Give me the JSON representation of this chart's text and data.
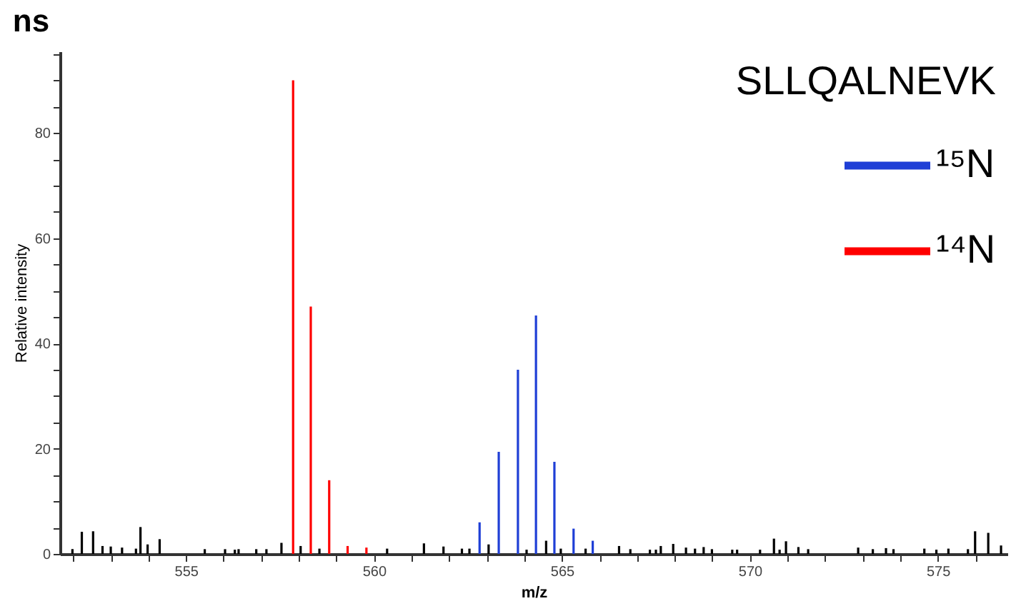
{
  "chart_data": {
    "type": "bar",
    "title": "ns",
    "xlabel": "m/z",
    "ylabel": "Relative intensity",
    "legend_title": "SLLQALNEVK",
    "legend": "top right",
    "grid": false,
    "xlim": [
      551.65,
      576.85
    ],
    "xticks": [
      {
        "value": 552,
        "label": null
      },
      {
        "value": 553,
        "label": null
      },
      {
        "value": 554,
        "label": null
      },
      555,
      {
        "value": 556,
        "label": null
      },
      {
        "value": 557,
        "label": null
      },
      {
        "value": 558,
        "label": null
      },
      {
        "value": 559,
        "label": null
      },
      560,
      {
        "value": 561,
        "label": null
      },
      {
        "value": 562,
        "label": null
      },
      {
        "value": 563,
        "label": null
      },
      {
        "value": 564,
        "label": null
      },
      565,
      {
        "value": 566,
        "label": null
      },
      {
        "value": 567,
        "label": null
      },
      {
        "value": 568,
        "label": null
      },
      {
        "value": 569,
        "label": null
      },
      570,
      {
        "value": 571,
        "label": null
      },
      {
        "value": 572,
        "label": null
      },
      {
        "value": 573,
        "label": null
      },
      {
        "value": 574,
        "label": null
      },
      575,
      {
        "value": 576,
        "label": null
      }
    ],
    "ylim": [
      0,
      95.5
    ],
    "yticks": [
      0,
      {
        "value": 5,
        "label": null
      },
      {
        "value": 10,
        "label": null
      },
      {
        "value": 15,
        "label": null
      },
      20,
      {
        "value": 25,
        "label": null
      },
      {
        "value": 30,
        "label": null
      },
      {
        "value": 35,
        "label": null
      },
      40,
      {
        "value": 45,
        "label": null
      },
      {
        "value": 50,
        "label": null
      },
      {
        "value": 55,
        "label": null
      },
      60,
      {
        "value": 65,
        "label": null
      },
      {
        "value": 70,
        "label": null
      },
      {
        "value": 75,
        "label": null
      },
      80,
      {
        "value": 85,
        "label": null
      },
      {
        "value": 90,
        "label": null
      },
      {
        "value": 95,
        "label": null
      }
    ],
    "series": [
      {
        "name": "¹⁵N",
        "color": "#1f3fd6",
        "x": [
          562.81,
          563.32,
          563.83,
          564.31,
          564.8,
          565.31,
          565.82
        ],
        "values": [
          6,
          19.4,
          35,
          45.3,
          17.5,
          4.8,
          2.5
        ]
      },
      {
        "name": "¹⁴N",
        "color": "#ff0000",
        "x": [
          557.85,
          558.32,
          558.81,
          559.3,
          559.8
        ],
        "values": [
          90,
          47,
          14,
          1.5,
          1.2
        ]
      },
      {
        "color": "#000000",
        "x": [
          551.98,
          552.23,
          552.53,
          552.78,
          553.0,
          553.3,
          553.67,
          553.79,
          553.98,
          554.3,
          555.5,
          556.04,
          556.3,
          556.4,
          556.87,
          557.14,
          557.54,
          558.05,
          558.55,
          560.35,
          561.33,
          561.85,
          562.34,
          562.54,
          563.05,
          564.06,
          564.58,
          564.97,
          565.63,
          566.52,
          566.82,
          567.34,
          567.5,
          567.63,
          567.96,
          568.3,
          568.54,
          568.77,
          568.99,
          569.53,
          569.66,
          570.27,
          570.64,
          570.79,
          570.96,
          571.29,
          571.55,
          572.88,
          573.27,
          573.62,
          573.82,
          574.64,
          574.96,
          575.28,
          575.8,
          575.99,
          576.34,
          576.68
        ],
        "values": [
          0.9,
          4.2,
          4.3,
          1.5,
          1.4,
          1.2,
          1,
          5.1,
          1.8,
          2.8,
          0.9,
          0.9,
          0.8,
          0.9,
          0.9,
          0.9,
          2.1,
          1.5,
          1,
          1,
          2,
          1.4,
          1,
          1,
          1.8,
          0.8,
          2.5,
          1,
          1,
          1.5,
          0.9,
          0.8,
          0.8,
          1.5,
          1.9,
          1.2,
          1,
          1.3,
          0.9,
          0.8,
          0.8,
          0.8,
          2.9,
          0.8,
          2.4,
          1.3,
          0.9,
          1.2,
          0.9,
          1.1,
          0.9,
          1,
          0.8,
          1,
          0.9,
          4.3,
          4,
          1.6
        ]
      }
    ]
  }
}
